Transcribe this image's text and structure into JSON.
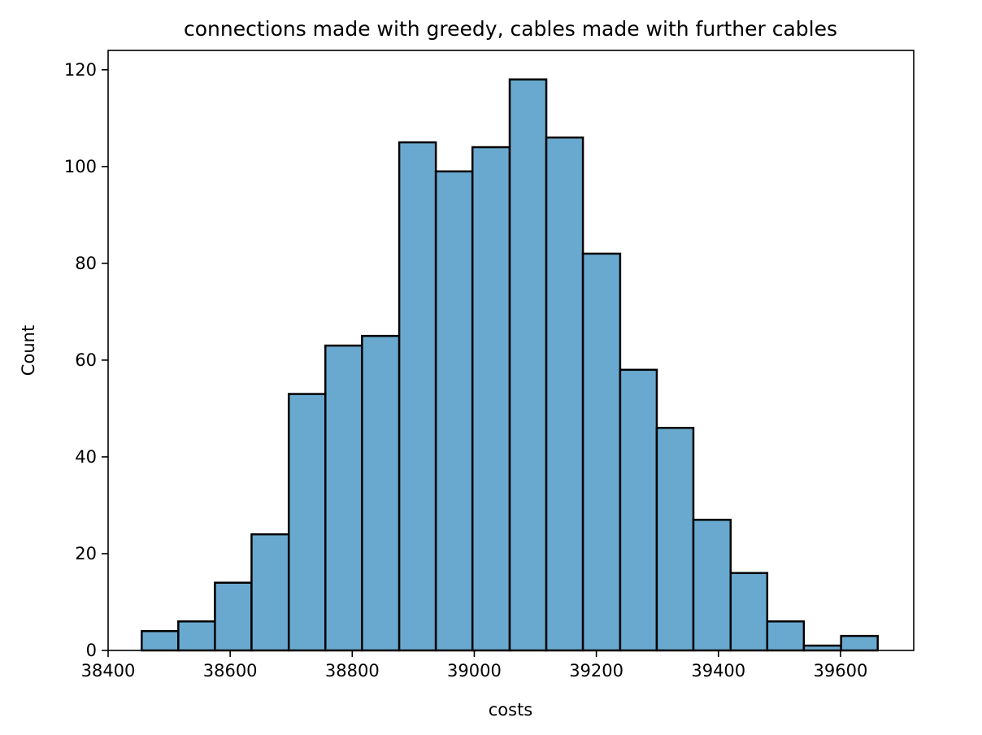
{
  "chart_data": {
    "type": "histogram",
    "title": "connections made with greedy, cables made with further cables",
    "xlabel": "costs",
    "ylabel": "Count",
    "bar_color": "#6aa9cf",
    "edge_color": "#000000",
    "xlim": [
      38400,
      39720
    ],
    "ylim": [
      0,
      124
    ],
    "xticks": [
      38400,
      38600,
      38800,
      39000,
      39200,
      39400,
      39600
    ],
    "yticks": [
      0,
      20,
      40,
      60,
      80,
      100,
      120
    ],
    "bins": [
      {
        "start": 38455,
        "end": 38515,
        "count": 4
      },
      {
        "start": 38515,
        "end": 38575,
        "count": 6
      },
      {
        "start": 38575,
        "end": 38635,
        "count": 14
      },
      {
        "start": 38635,
        "end": 38696,
        "count": 24
      },
      {
        "start": 38696,
        "end": 38756,
        "count": 53
      },
      {
        "start": 38756,
        "end": 38816,
        "count": 63
      },
      {
        "start": 38816,
        "end": 38877,
        "count": 65
      },
      {
        "start": 38877,
        "end": 38937,
        "count": 105
      },
      {
        "start": 38937,
        "end": 38997,
        "count": 99
      },
      {
        "start": 38997,
        "end": 39058,
        "count": 104
      },
      {
        "start": 39058,
        "end": 39118,
        "count": 118
      },
      {
        "start": 39118,
        "end": 39178,
        "count": 106
      },
      {
        "start": 39178,
        "end": 39239,
        "count": 82
      },
      {
        "start": 39239,
        "end": 39299,
        "count": 58
      },
      {
        "start": 39299,
        "end": 39359,
        "count": 46
      },
      {
        "start": 39359,
        "end": 39420,
        "count": 27
      },
      {
        "start": 39420,
        "end": 39480,
        "count": 16
      },
      {
        "start": 39480,
        "end": 39540,
        "count": 6
      },
      {
        "start": 39540,
        "end": 39601,
        "count": 1
      },
      {
        "start": 39601,
        "end": 39661,
        "count": 3
      }
    ]
  }
}
